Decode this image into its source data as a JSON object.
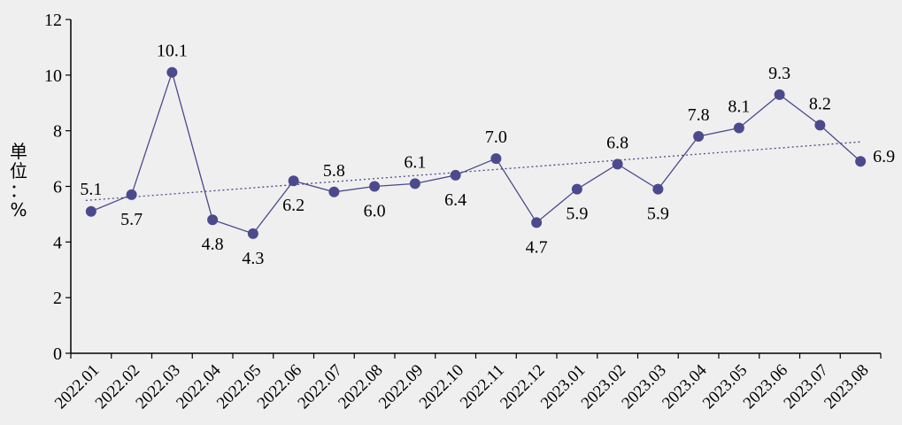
{
  "chart_data": {
    "type": "line",
    "title": "",
    "xlabel": "",
    "ylabel": "单位：%",
    "ylabel_chars": [
      "单",
      "位",
      "：",
      "%"
    ],
    "categories": [
      "2022.01",
      "2022.02",
      "2022.03",
      "2022.04",
      "2022.05",
      "2022.06",
      "2022.07",
      "2022.08",
      "2022.09",
      "2022.10",
      "2022.11",
      "2022.12",
      "2023.01",
      "2023.02",
      "2023.03",
      "2023.04",
      "2023.05",
      "2023.06",
      "2023.07",
      "2023.08"
    ],
    "series": [
      {
        "values": [
          5.1,
          5.7,
          10.1,
          4.8,
          4.3,
          6.2,
          5.8,
          6.0,
          6.1,
          6.4,
          7.0,
          4.7,
          5.9,
          6.8,
          5.9,
          7.8,
          8.1,
          9.3,
          8.2,
          6.9
        ],
        "labels": [
          "5.1",
          "5.7",
          "10.1",
          "4.8",
          "4.3",
          "6.2",
          "5.8",
          "6.0",
          "6.1",
          "6.4",
          "7.0",
          "4.7",
          "5.9",
          "6.8",
          "5.9",
          "7.8",
          "8.1",
          "9.3",
          "8.2",
          "6.9"
        ],
        "color": "#4b4a8c"
      }
    ],
    "trendline": {
      "style": "dotted",
      "color": "#4b4a8c"
    },
    "ylim": [
      0,
      12
    ],
    "yticks": [
      0,
      2,
      4,
      6,
      8,
      10,
      12
    ],
    "grid": false,
    "legend": "none"
  }
}
